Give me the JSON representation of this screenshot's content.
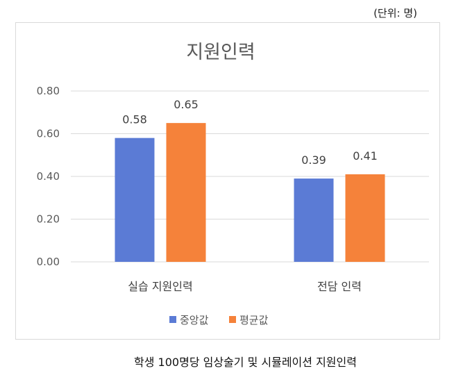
{
  "unit_note": "(단위: 명)",
  "caption": "학생 100명당 임상술기 및 시뮬레이션 지원인력",
  "chart_data": {
    "type": "bar",
    "title": "지원인력",
    "categories": [
      "실습 지원인력",
      "전담 인력"
    ],
    "series": [
      {
        "name": "중앙값",
        "values": [
          0.58,
          0.39
        ],
        "color": "#5b7bd5"
      },
      {
        "name": "평균값",
        "values": [
          0.65,
          0.41
        ],
        "color": "#f5823a"
      }
    ],
    "ylim": [
      0,
      0.8
    ],
    "yticks": [
      "0.00",
      "0.20",
      "0.40",
      "0.60",
      "0.80"
    ],
    "grid": true,
    "legend": "bottom",
    "xlabel": "",
    "ylabel": ""
  }
}
